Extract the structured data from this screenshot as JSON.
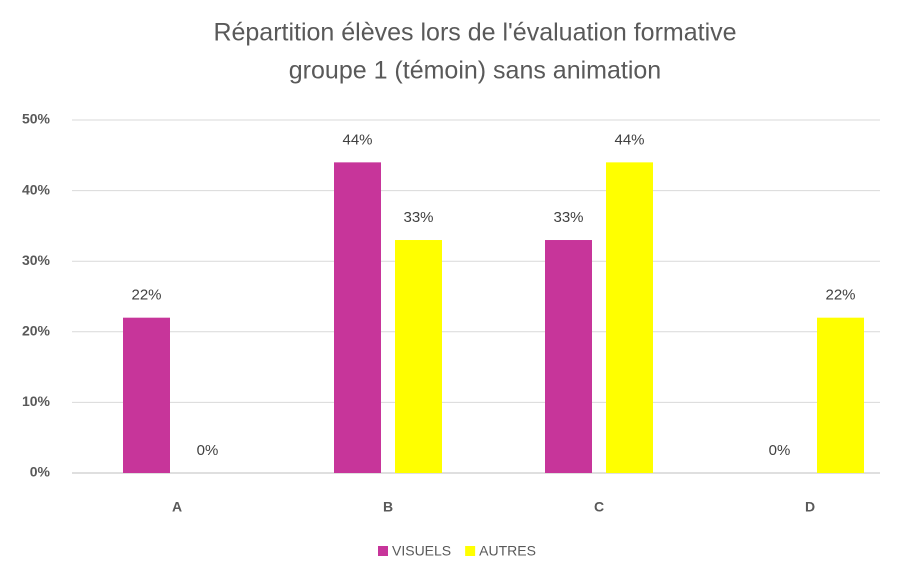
{
  "chart_data": {
    "type": "bar",
    "title": [
      "Répartition élèves lors de l'évaluation formative",
      "groupe 1 (témoin) sans animation"
    ],
    "categories": [
      "A",
      "B",
      "C",
      "D"
    ],
    "series": [
      {
        "name": "VISUELS",
        "color": "#c7359a",
        "values": [
          22,
          44,
          33,
          0
        ],
        "value_labels": [
          "22%",
          "44%",
          "33%",
          "0%"
        ]
      },
      {
        "name": "AUTRES",
        "color": "#ffff00",
        "values": [
          0,
          33,
          44,
          22
        ],
        "value_labels": [
          "0%",
          "33%",
          "44%",
          "22%"
        ]
      }
    ],
    "ylim": [
      0,
      50
    ],
    "yticks": [
      {
        "value": 0,
        "label": "0%"
      },
      {
        "value": 10,
        "label": "10%"
      },
      {
        "value": 20,
        "label": "20%"
      },
      {
        "value": 30,
        "label": "30%"
      },
      {
        "value": 40,
        "label": "40%"
      },
      {
        "value": 50,
        "label": "50%"
      }
    ],
    "grid": true,
    "legend": "bottom"
  }
}
